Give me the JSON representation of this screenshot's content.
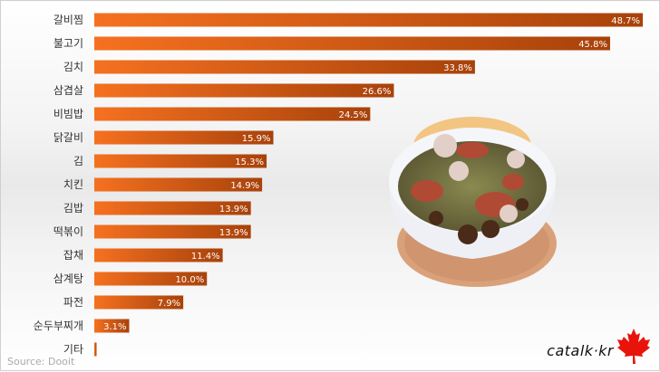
{
  "chart_data": {
    "type": "bar",
    "orientation": "horizontal",
    "categories": [
      "갈비찜",
      "불고기",
      "김치",
      "삼겹살",
      "비빔밥",
      "닭갈비",
      "김",
      "치킨",
      "김밥",
      "떡볶이",
      "잡채",
      "삼계탕",
      "파전",
      "순두부찌개",
      "기타"
    ],
    "values": [
      48.7,
      45.8,
      33.8,
      26.6,
      24.5,
      15.9,
      15.3,
      14.9,
      13.9,
      13.9,
      11.4,
      10.0,
      7.9,
      3.1,
      0.2
    ],
    "labels": [
      "48.7%",
      "45.8%",
      "33.8%",
      "26.6%",
      "24.5%",
      "15.9%",
      "15.3%",
      "14.9%",
      "13.9%",
      "13.9%",
      "11.4%",
      "10.0%",
      "7.9%",
      "3.1%",
      ""
    ],
    "xlim": [
      0,
      48.7
    ],
    "grid": false,
    "bar_colors": [
      "#f57120",
      "#a8420a"
    ]
  },
  "source": "Source: Dooit",
  "logo": "catalk·kr"
}
